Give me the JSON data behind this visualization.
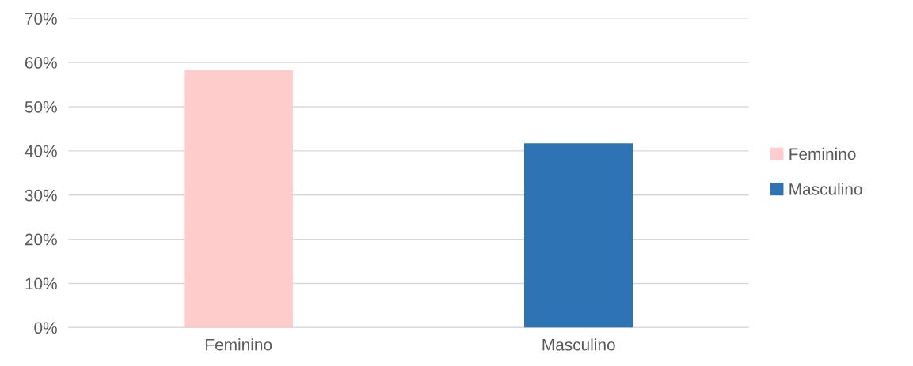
{
  "chart_data": {
    "type": "bar",
    "categories": [
      "Feminino",
      "Masculino"
    ],
    "series": [
      {
        "name": "Feminino",
        "color": "#ffcccc",
        "values": [
          58.3,
          null
        ]
      },
      {
        "name": "Masculino",
        "color": "#2e74b5",
        "values": [
          null,
          41.7
        ]
      }
    ],
    "ylim": [
      0,
      70
    ],
    "yticks": [
      {
        "value": 0,
        "label": "0%"
      },
      {
        "value": 10,
        "label": "10%"
      },
      {
        "value": 20,
        "label": "20%"
      },
      {
        "value": 30,
        "label": "30%"
      },
      {
        "value": 40,
        "label": "40%"
      },
      {
        "value": 50,
        "label": "50%"
      },
      {
        "value": 60,
        "label": "60%"
      },
      {
        "value": 70,
        "label": "70%"
      }
    ],
    "grid": "y",
    "legend": "right"
  }
}
